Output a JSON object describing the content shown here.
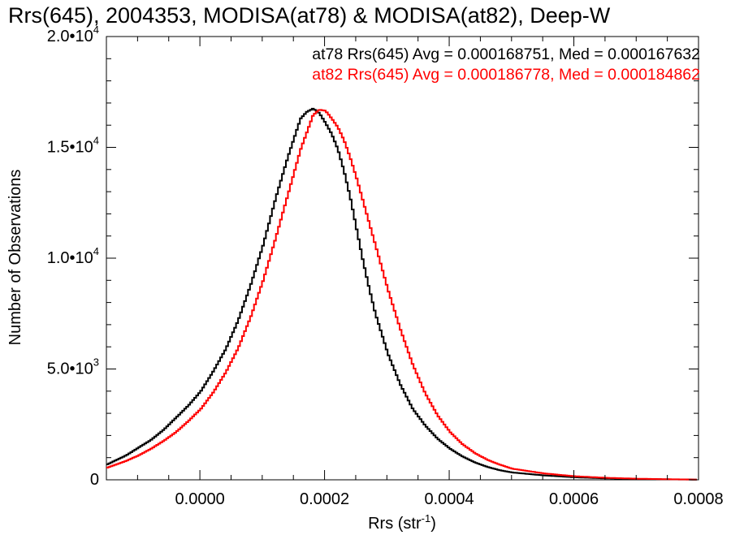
{
  "chart_data": {
    "type": "line",
    "title": "Rrs(645), 2004353, MODISA(at78) & MODISA(at82), Deep-W",
    "xlabel": "Rrs (str",
    "xlabel_sup": "-1",
    "xlabel_close": ")",
    "ylabel": "Number of Observations",
    "xlim": [
      -0.00015,
      0.0008
    ],
    "ylim": [
      0,
      20000
    ],
    "x_ticks": [
      {
        "value": 0.0,
        "label": "0.0000"
      },
      {
        "value": 0.0002,
        "label": "0.0002"
      },
      {
        "value": 0.0004,
        "label": "0.0004"
      },
      {
        "value": 0.0006,
        "label": "0.0006"
      },
      {
        "value": 0.0008,
        "label": "0.0008"
      }
    ],
    "y_ticks": [
      {
        "value": 0,
        "label": "0",
        "sup": ""
      },
      {
        "value": 5000,
        "label": "5.0•10",
        "sup": "3"
      },
      {
        "value": 10000,
        "label": "1.0•10",
        "sup": "4"
      },
      {
        "value": 15000,
        "label": "1.5•10",
        "sup": "4"
      },
      {
        "value": 20000,
        "label": "2.0•10",
        "sup": "4"
      }
    ],
    "legend_placement": "top-right",
    "annotations": [
      {
        "text": "at78 Rrs(645) Avg = 0.000168751, Med = 0.000167632",
        "color": "#000000"
      },
      {
        "text": "at82 Rrs(645) Avg = 0.000186778, Med = 0.000184862",
        "color": "#ff0000"
      }
    ],
    "series": [
      {
        "color": "#000000",
        "x": [
          -0.00015,
          -0.00012,
          -0.0001,
          -8e-05,
          -6e-05,
          -4e-05,
          -2e-05,
          0.0,
          2e-05,
          4e-05,
          6e-05,
          8e-05,
          0.0001,
          0.00012,
          0.00014,
          0.00016,
          0.00017,
          0.00018,
          0.00019,
          0.0002,
          0.00021,
          0.00022,
          0.00023,
          0.00024,
          0.00025,
          0.00026,
          0.00027,
          0.00028,
          0.0003,
          0.00032,
          0.00034,
          0.00036,
          0.00038,
          0.0004,
          0.00042,
          0.00044,
          0.00046,
          0.00048,
          0.0005,
          0.00055,
          0.0006,
          0.00065,
          0.0007,
          0.00075,
          0.0008
        ],
        "y": [
          700,
          1100,
          1450,
          1800,
          2250,
          2800,
          3350,
          4000,
          4900,
          5900,
          7200,
          8800,
          10600,
          12700,
          14600,
          16300,
          16600,
          16750,
          16550,
          16100,
          15600,
          14900,
          13900,
          12700,
          11300,
          9900,
          8650,
          7500,
          5700,
          4300,
          3200,
          2450,
          1850,
          1400,
          1050,
          780,
          580,
          430,
          330,
          200,
          115,
          65,
          35,
          20,
          10
        ]
      },
      {
        "color": "#ff0000",
        "x": [
          -0.00015,
          -0.00012,
          -0.0001,
          -8e-05,
          -6e-05,
          -4e-05,
          -2e-05,
          0.0,
          2e-05,
          4e-05,
          6e-05,
          8e-05,
          0.0001,
          0.00012,
          0.00014,
          0.00016,
          0.00018,
          0.00019,
          0.0002,
          0.00021,
          0.00022,
          0.00023,
          0.00024,
          0.00025,
          0.00026,
          0.00027,
          0.00028,
          0.0003,
          0.00032,
          0.00034,
          0.00036,
          0.00038,
          0.0004,
          0.00042,
          0.00044,
          0.00046,
          0.00048,
          0.0005,
          0.00055,
          0.0006,
          0.00065,
          0.0007,
          0.00075,
          0.0008
        ],
        "y": [
          550,
          850,
          1100,
          1400,
          1750,
          2150,
          2650,
          3200,
          3950,
          4850,
          5950,
          7350,
          9000,
          10900,
          12900,
          14900,
          16450,
          16700,
          16650,
          16300,
          15900,
          15300,
          14500,
          13600,
          12600,
          11600,
          10600,
          8600,
          6800,
          5200,
          3900,
          2900,
          2150,
          1600,
          1200,
          900,
          680,
          500,
          290,
          160,
          90,
          50,
          25,
          10
        ]
      }
    ]
  }
}
